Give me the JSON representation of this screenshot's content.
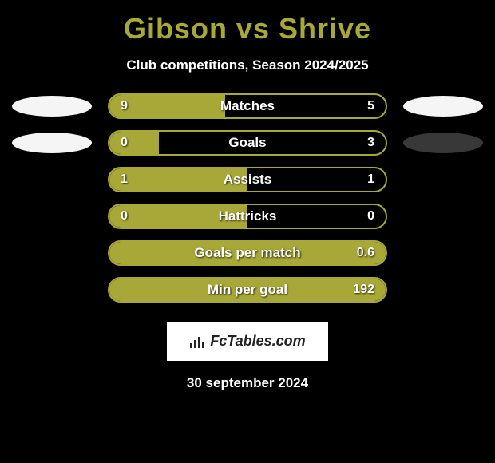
{
  "title": "Gibson vs Shrive",
  "subtitle": "Club competitions, Season 2024/2025",
  "date": "30 september 2024",
  "attribution": "FcTables.com",
  "colors": {
    "background": "#000000",
    "accent": "#a8a838",
    "ellipse_light": "#f5f5f5",
    "ellipse_dark": "#383838",
    "text": "#ffffff"
  },
  "stats": [
    {
      "label": "Matches",
      "left_value": "9",
      "right_value": "5",
      "left_fill_pct": 42,
      "right_fill_pct": 0,
      "show_left_ellipse": true,
      "show_right_ellipse": true,
      "left_ellipse_color": "#f5f5f5",
      "right_ellipse_color": "#f5f5f5"
    },
    {
      "label": "Goals",
      "left_value": "0",
      "right_value": "3",
      "left_fill_pct": 18,
      "right_fill_pct": 0,
      "show_left_ellipse": true,
      "show_right_ellipse": true,
      "left_ellipse_color": "#f5f5f5",
      "right_ellipse_color": "#383838"
    },
    {
      "label": "Assists",
      "left_value": "1",
      "right_value": "1",
      "left_fill_pct": 50,
      "right_fill_pct": 0,
      "show_left_ellipse": false,
      "show_right_ellipse": false
    },
    {
      "label": "Hattricks",
      "left_value": "0",
      "right_value": "0",
      "left_fill_pct": 50,
      "right_fill_pct": 0,
      "show_left_ellipse": false,
      "show_right_ellipse": false
    },
    {
      "label": "Goals per match",
      "left_value": "",
      "right_value": "0.6",
      "left_fill_pct": 100,
      "right_fill_pct": 0,
      "show_left_ellipse": false,
      "show_right_ellipse": false
    },
    {
      "label": "Min per goal",
      "left_value": "",
      "right_value": "192",
      "left_fill_pct": 0,
      "right_fill_pct": 100,
      "show_left_ellipse": false,
      "show_right_ellipse": false
    }
  ]
}
